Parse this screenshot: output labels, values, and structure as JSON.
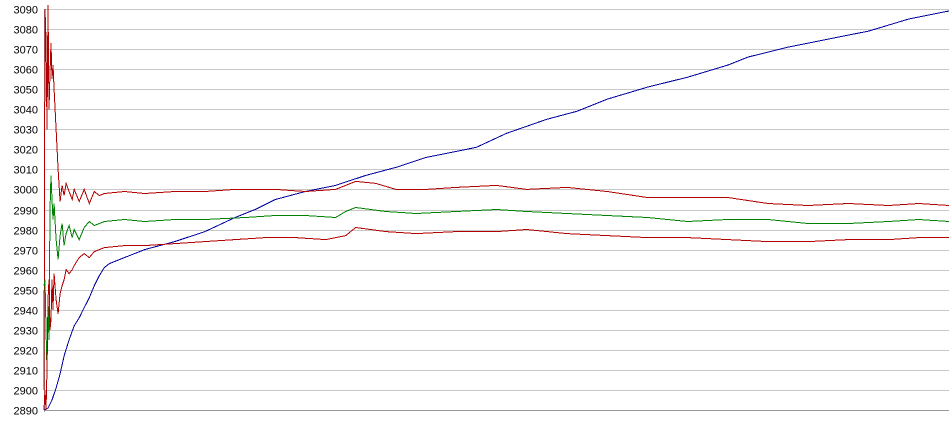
{
  "chart_data": {
    "type": "line",
    "title": "",
    "xlabel": "",
    "ylabel": "",
    "grid": true,
    "legend": "none",
    "xlim": [
      0,
      900
    ],
    "ylim": [
      2890,
      3090
    ],
    "yticks": [
      "2890",
      "2900",
      "2910",
      "2920",
      "2930",
      "2940",
      "2950",
      "2960",
      "2970",
      "2980",
      "2990",
      "3000",
      "3010",
      "3020",
      "3030",
      "3040",
      "3050",
      "3060",
      "3070",
      "3080",
      "3090"
    ],
    "series": [
      {
        "color": "#0000a0",
        "points": [
          [
            0,
            2890
          ],
          [
            4,
            2891
          ],
          [
            8,
            2895
          ],
          [
            12,
            2901
          ],
          [
            16,
            2908
          ],
          [
            20,
            2917
          ],
          [
            25,
            2925
          ],
          [
            30,
            2932
          ],
          [
            35,
            2936
          ],
          [
            40,
            2941
          ],
          [
            45,
            2946
          ],
          [
            50,
            2952
          ],
          [
            55,
            2957
          ],
          [
            60,
            2961
          ],
          [
            65,
            2963
          ],
          [
            75,
            2965
          ],
          [
            85,
            2967
          ],
          [
            100,
            2970
          ],
          [
            130,
            2974
          ],
          [
            160,
            2979
          ],
          [
            190,
            2986
          ],
          [
            210,
            2990
          ],
          [
            230,
            2995
          ],
          [
            260,
            2999
          ],
          [
            290,
            3002
          ],
          [
            320,
            3007
          ],
          [
            350,
            3011
          ],
          [
            380,
            3016
          ],
          [
            410,
            3019
          ],
          [
            430,
            3021
          ],
          [
            460,
            3028
          ],
          [
            500,
            3035
          ],
          [
            530,
            3039
          ],
          [
            560,
            3045
          ],
          [
            600,
            3051
          ],
          [
            640,
            3056
          ],
          [
            680,
            3062
          ],
          [
            700,
            3066
          ],
          [
            740,
            3071
          ],
          [
            780,
            3075
          ],
          [
            820,
            3079
          ],
          [
            860,
            3085
          ],
          [
            900,
            3089
          ]
        ]
      },
      {
        "color": "#b00000",
        "points": [
          [
            0,
            2900
          ],
          [
            1,
            3090
          ],
          [
            2,
            3075
          ],
          [
            3,
            3030
          ],
          [
            4,
            3092
          ],
          [
            5,
            3040
          ],
          [
            6,
            3058
          ],
          [
            7,
            3073
          ],
          [
            8,
            3055
          ],
          [
            9,
            3062
          ],
          [
            10,
            3050
          ],
          [
            12,
            3030
          ],
          [
            14,
            3010
          ],
          [
            16,
            2994
          ],
          [
            18,
            3002
          ],
          [
            20,
            2997
          ],
          [
            22,
            3003
          ],
          [
            25,
            2999
          ],
          [
            28,
            2995
          ],
          [
            30,
            3000
          ],
          [
            35,
            2994
          ],
          [
            40,
            3000
          ],
          [
            45,
            2993
          ],
          [
            50,
            2999
          ],
          [
            55,
            2997
          ],
          [
            60,
            2998
          ],
          [
            80,
            2999
          ],
          [
            100,
            2998
          ],
          [
            130,
            2999
          ],
          [
            160,
            2999
          ],
          [
            190,
            3000
          ],
          [
            230,
            3000
          ],
          [
            260,
            2999
          ],
          [
            290,
            3000
          ],
          [
            310,
            3004
          ],
          [
            330,
            3003
          ],
          [
            350,
            3000
          ],
          [
            380,
            3000
          ],
          [
            410,
            3001
          ],
          [
            450,
            3002
          ],
          [
            480,
            3000
          ],
          [
            520,
            3001
          ],
          [
            560,
            2999
          ],
          [
            600,
            2996
          ],
          [
            640,
            2996
          ],
          [
            680,
            2996
          ],
          [
            720,
            2993
          ],
          [
            760,
            2992
          ],
          [
            800,
            2993
          ],
          [
            840,
            2992
          ],
          [
            870,
            2993
          ],
          [
            900,
            2992
          ]
        ]
      },
      {
        "color": "#008000",
        "points": [
          [
            0,
            2952
          ],
          [
            1,
            2955
          ],
          [
            2,
            2930
          ],
          [
            3,
            2910
          ],
          [
            4,
            2940
          ],
          [
            5,
            2925
          ],
          [
            6,
            2990
          ],
          [
            7,
            3007
          ],
          [
            8,
            2995
          ],
          [
            9,
            2985
          ],
          [
            10,
            2993
          ],
          [
            12,
            2975
          ],
          [
            14,
            2965
          ],
          [
            16,
            2977
          ],
          [
            18,
            2983
          ],
          [
            20,
            2972
          ],
          [
            22,
            2978
          ],
          [
            25,
            2982
          ],
          [
            28,
            2976
          ],
          [
            30,
            2980
          ],
          [
            35,
            2975
          ],
          [
            40,
            2981
          ],
          [
            45,
            2984
          ],
          [
            50,
            2982
          ],
          [
            60,
            2984
          ],
          [
            80,
            2985
          ],
          [
            100,
            2984
          ],
          [
            130,
            2985
          ],
          [
            160,
            2985
          ],
          [
            200,
            2986
          ],
          [
            230,
            2987
          ],
          [
            260,
            2987
          ],
          [
            290,
            2986
          ],
          [
            300,
            2989
          ],
          [
            310,
            2991
          ],
          [
            340,
            2989
          ],
          [
            370,
            2988
          ],
          [
            410,
            2989
          ],
          [
            450,
            2990
          ],
          [
            480,
            2989
          ],
          [
            520,
            2988
          ],
          [
            560,
            2987
          ],
          [
            600,
            2986
          ],
          [
            640,
            2984
          ],
          [
            680,
            2985
          ],
          [
            720,
            2985
          ],
          [
            760,
            2983
          ],
          [
            800,
            2983
          ],
          [
            840,
            2984
          ],
          [
            870,
            2985
          ],
          [
            900,
            2984
          ]
        ]
      },
      {
        "color": "#b00000",
        "points": [
          [
            0,
            2890
          ],
          [
            1,
            2900
          ],
          [
            2,
            2890
          ],
          [
            3,
            2910
          ],
          [
            4,
            2945
          ],
          [
            5,
            2955
          ],
          [
            6,
            2930
          ],
          [
            7,
            2935
          ],
          [
            8,
            2955
          ],
          [
            9,
            2940
          ],
          [
            10,
            2958
          ],
          [
            12,
            2945
          ],
          [
            14,
            2938
          ],
          [
            16,
            2948
          ],
          [
            18,
            2952
          ],
          [
            20,
            2955
          ],
          [
            22,
            2960
          ],
          [
            25,
            2958
          ],
          [
            28,
            2960
          ],
          [
            30,
            2962
          ],
          [
            35,
            2966
          ],
          [
            40,
            2968
          ],
          [
            45,
            2966
          ],
          [
            50,
            2969
          ],
          [
            60,
            2971
          ],
          [
            80,
            2972
          ],
          [
            100,
            2972
          ],
          [
            130,
            2973
          ],
          [
            160,
            2974
          ],
          [
            190,
            2975
          ],
          [
            220,
            2976
          ],
          [
            250,
            2976
          ],
          [
            280,
            2975
          ],
          [
            300,
            2977
          ],
          [
            310,
            2981
          ],
          [
            340,
            2979
          ],
          [
            370,
            2978
          ],
          [
            410,
            2979
          ],
          [
            450,
            2979
          ],
          [
            480,
            2980
          ],
          [
            520,
            2978
          ],
          [
            560,
            2977
          ],
          [
            600,
            2976
          ],
          [
            640,
            2976
          ],
          [
            680,
            2975
          ],
          [
            720,
            2974
          ],
          [
            760,
            2974
          ],
          [
            800,
            2975
          ],
          [
            840,
            2975
          ],
          [
            870,
            2976
          ],
          [
            900,
            2976
          ]
        ]
      }
    ]
  }
}
